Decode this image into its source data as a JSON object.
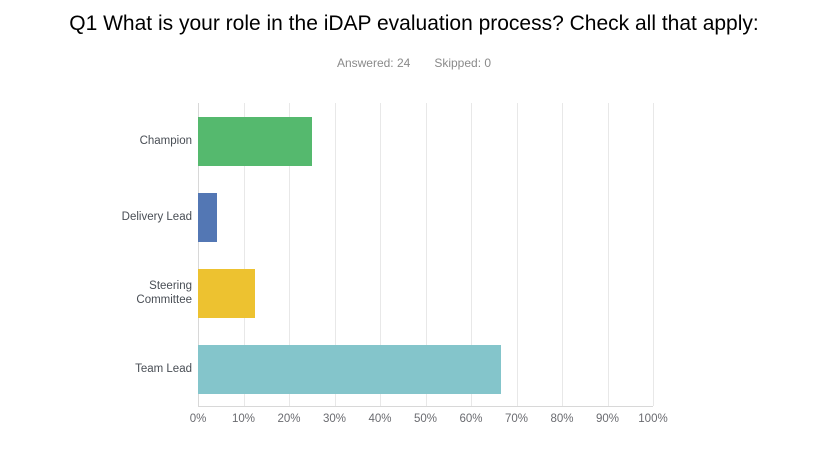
{
  "header": {
    "title": "Q1 What is your role in the iDAP evaluation process? Check all that apply:",
    "answered_label": "Answered: 24",
    "skipped_label": "Skipped: 0"
  },
  "chart_data": {
    "type": "bar",
    "orientation": "horizontal",
    "title": "",
    "xlabel": "",
    "ylabel": "",
    "categories": [
      "Champion",
      "Delivery Lead",
      "Steering Committee",
      "Team Lead"
    ],
    "values": [
      25,
      4.17,
      12.5,
      66.67
    ],
    "value_unit": "percent",
    "bar_colors": [
      "#55b96e",
      "#5377b4",
      "#edc230",
      "#84c5cb"
    ],
    "x_ticks": [
      "0%",
      "10%",
      "20%",
      "30%",
      "40%",
      "50%",
      "60%",
      "70%",
      "80%",
      "90%",
      "100%"
    ],
    "xlim": [
      0,
      100
    ],
    "grid": "vertical-gridlines",
    "legend_position": "none"
  },
  "ui_colors": {
    "background": "#ffffff",
    "title_text": "#000000",
    "subtitle_text": "#8a8a8a",
    "category_label_text": "#494e55",
    "tick_label_text": "#6a6b70",
    "gridline": "#e8e8e8",
    "axis_line": "#d8d8d8"
  }
}
